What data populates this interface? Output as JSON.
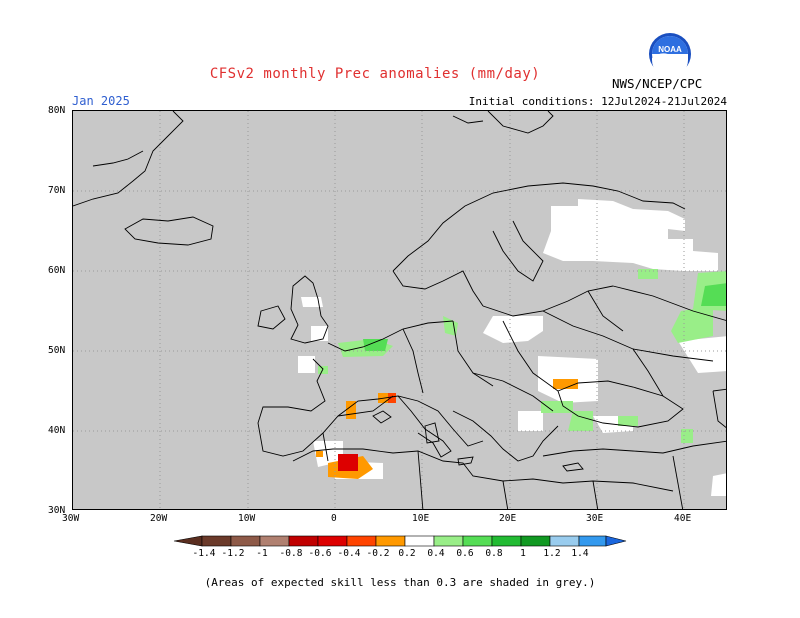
{
  "title": "CFSv2 monthly Prec anomalies (mm/day)",
  "month": "Jan 2025",
  "initial_conditions": "Initial conditions: 12Jul2024-21Jul2024",
  "agency": "NWS/NCEP/CPC",
  "logo_text": "NOAA",
  "footnote": "(Areas of expected skill less than 0.3 are shaded in grey.)",
  "colors": {
    "skill_mask": "#c8c8c8",
    "neutral": "#ffffff",
    "coast": "#000000"
  },
  "map": {
    "lon_range": [
      -30,
      45
    ],
    "lat_range": [
      30,
      80
    ],
    "lon_ticks": [
      "30W",
      "20W",
      "10W",
      "0",
      "10E",
      "20E",
      "30E",
      "40E"
    ],
    "lat_ticks": [
      "80N",
      "70N",
      "60N",
      "50N",
      "40N",
      "30N"
    ]
  },
  "legend": {
    "labels": [
      "-1.4",
      "-1.2",
      "-1",
      "-0.8",
      "-0.6",
      "-0.4",
      "-0.2",
      "0.2",
      "0.4",
      "0.6",
      "0.8",
      "1",
      "1.2",
      "1.4"
    ],
    "colors": [
      "#6b3a2a",
      "#8e5a48",
      "#b08070",
      "#c00000",
      "#dd0000",
      "#ff4400",
      "#ff9900",
      "#ffffff",
      "#99ee88",
      "#55dd55",
      "#22bb33",
      "#119922",
      "#99ccee",
      "#3399ee",
      "#1a66dd"
    ]
  }
}
